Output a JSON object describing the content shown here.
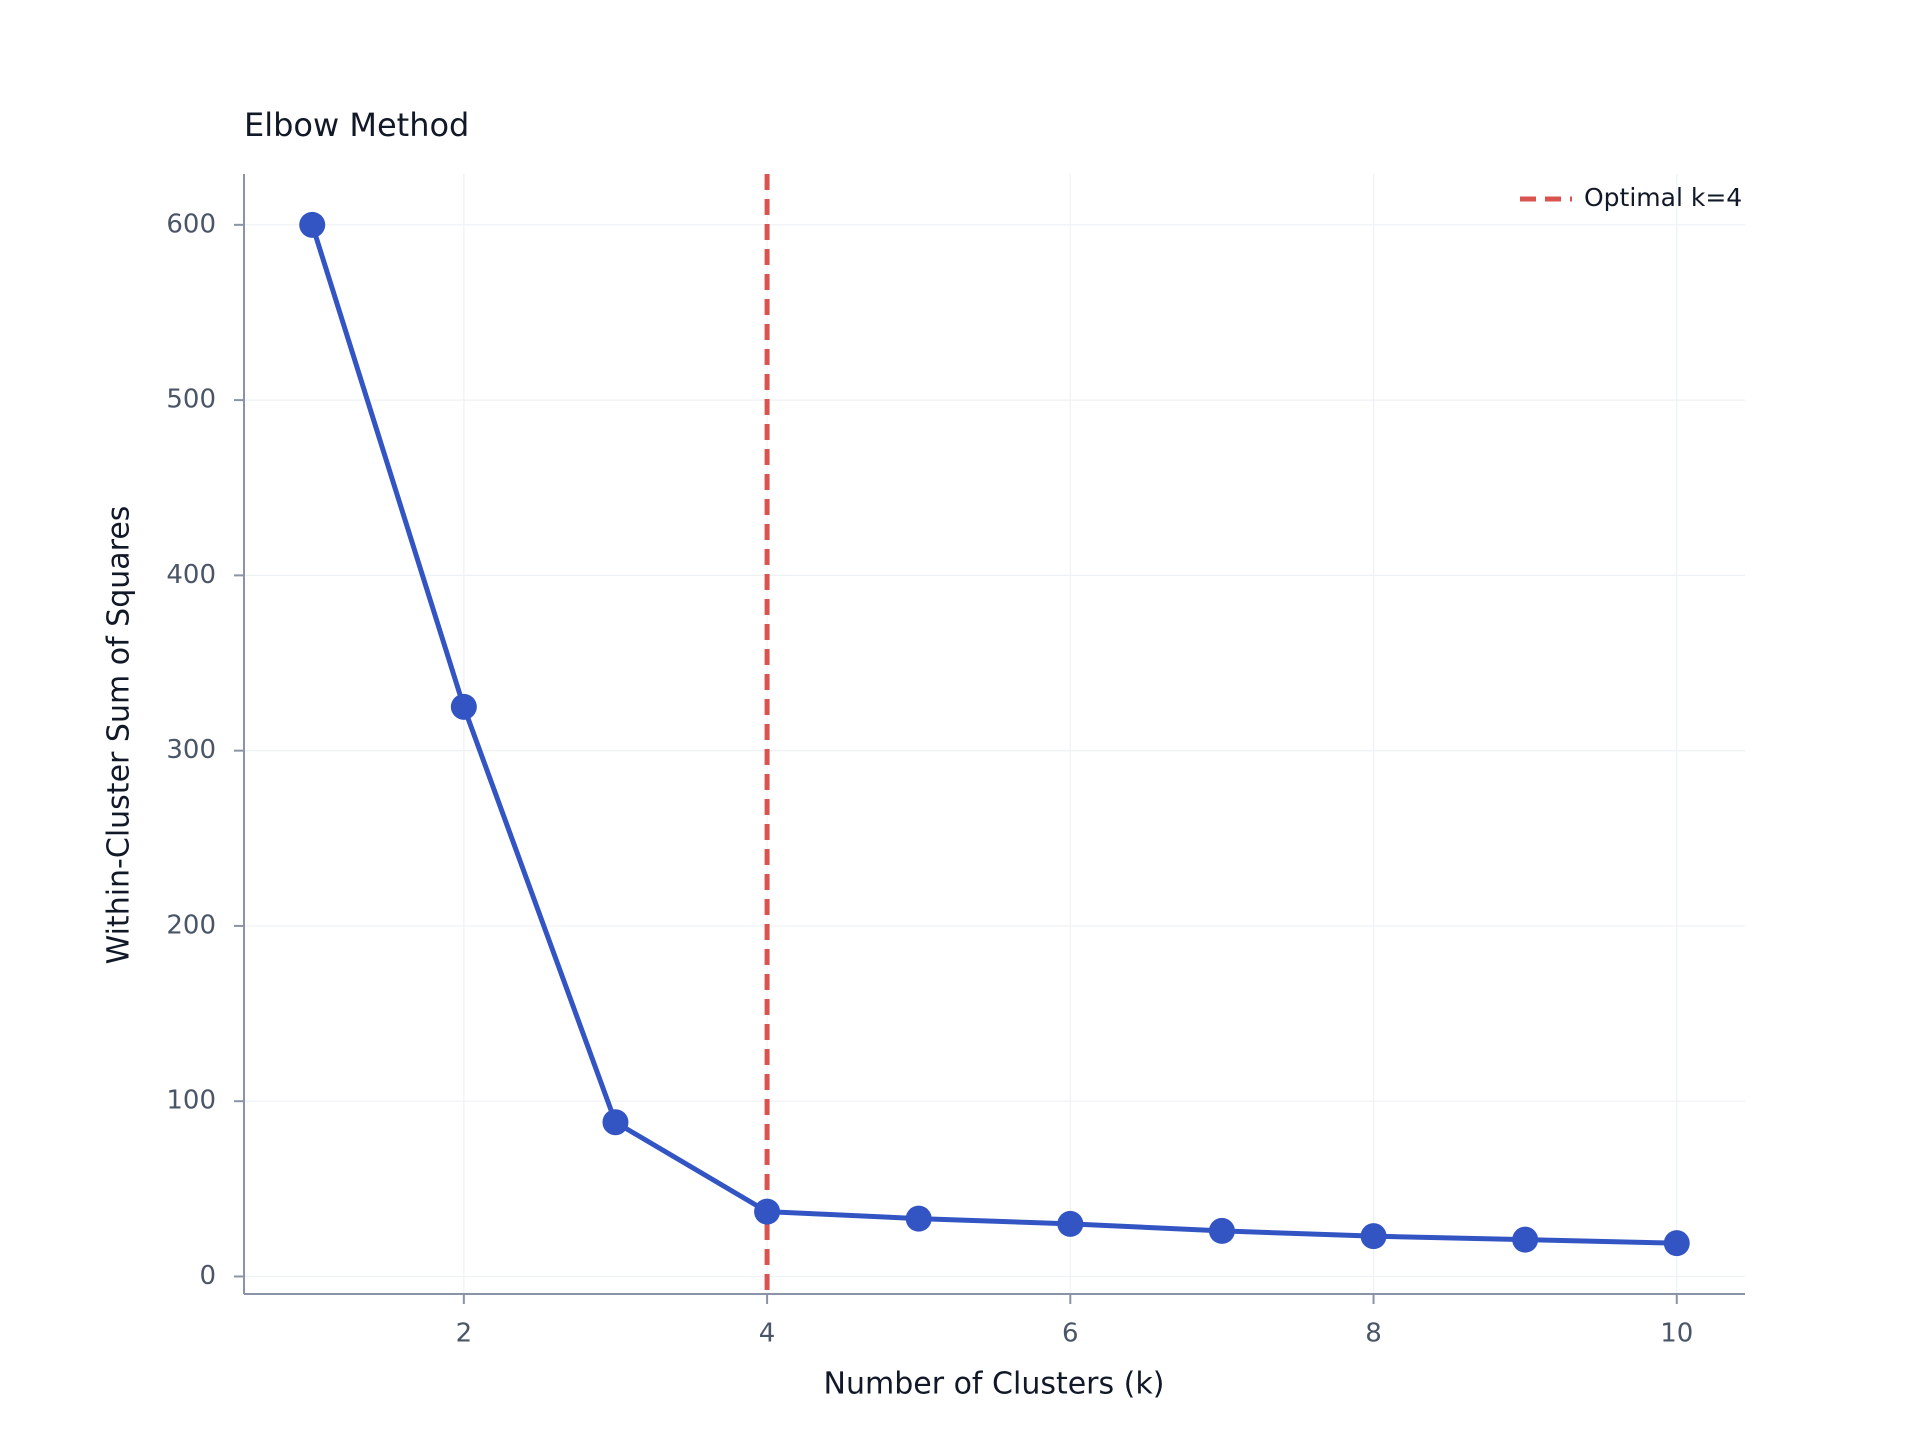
{
  "chart_data": {
    "type": "line",
    "title": "Elbow Method",
    "x_label": "Number of Clusters (k)",
    "y_label": "Within-Cluster Sum of Squares",
    "x": [
      1,
      2,
      3,
      4,
      5,
      6,
      7,
      8,
      9,
      10
    ],
    "series": [
      {
        "color": "#3355c4",
        "values": [
          600,
          325,
          88,
          37,
          33,
          30,
          26,
          23,
          21,
          19
        ]
      }
    ],
    "xlim": [
      0.55,
      10.45
    ],
    "ylim": [
      -10,
      629
    ],
    "xticks": [
      2,
      4,
      6,
      8,
      10
    ],
    "yticks": [
      0,
      100,
      200,
      300,
      400,
      500,
      600
    ],
    "grid": true,
    "vline": {
      "x": 4,
      "label": "Optimal k=4",
      "color": "#d9534f"
    },
    "legend": "upper right"
  }
}
